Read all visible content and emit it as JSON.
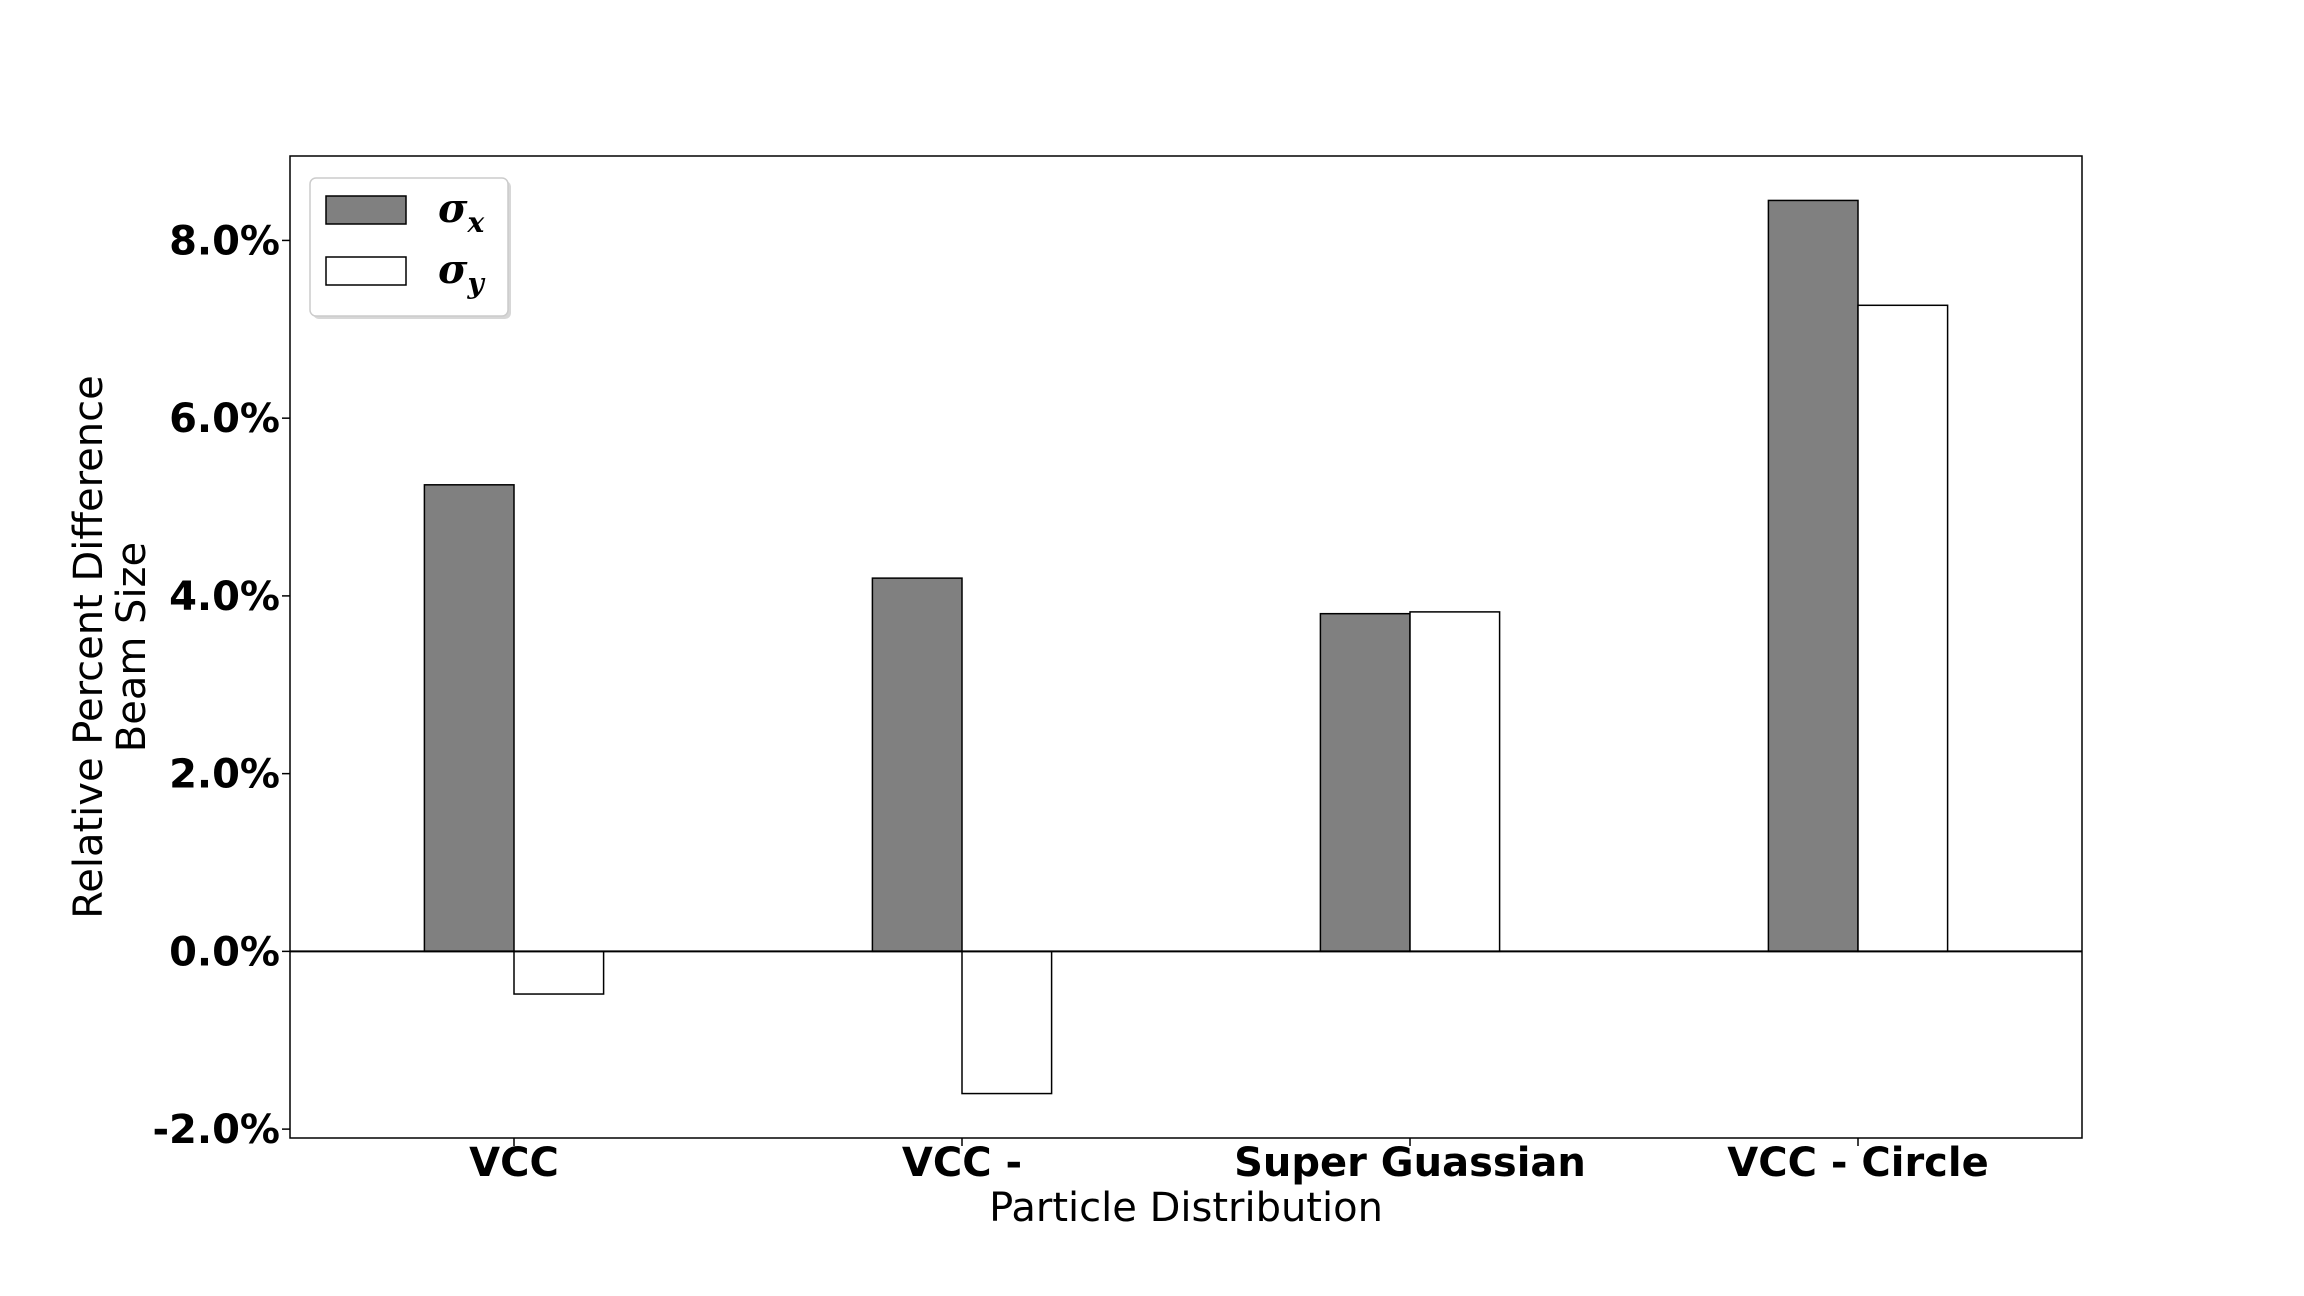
{
  "chart_data": {
    "type": "bar",
    "categories": [
      "VCC",
      "VCC -",
      "Super Guassian",
      "VCC - Circle"
    ],
    "series": [
      {
        "name": "σx",
        "symbol": "σ",
        "subscript": "x",
        "color": "#808080",
        "values": [
          5.25,
          4.2,
          3.8,
          8.45
        ]
      },
      {
        "name": "σy",
        "symbol": "σ",
        "subscript": "y",
        "color": "#ffffff",
        "values": [
          -0.48,
          -1.6,
          3.82,
          7.27
        ]
      }
    ],
    "xlabel": "Particle Distribution",
    "ylabel_lines": [
      "Relative Percent Difference",
      "Beam Size"
    ],
    "ylim": [
      -2.1,
      8.95
    ],
    "yticks": [
      -2.0,
      0.0,
      2.0,
      4.0,
      6.0,
      8.0
    ],
    "ytick_labels": [
      "-2.0%",
      "0.0%",
      "2.0%",
      "4.0%",
      "6.0%",
      "8.0%"
    ],
    "grid": false,
    "legend_position": "top-left",
    "edge_color": "#000000"
  }
}
